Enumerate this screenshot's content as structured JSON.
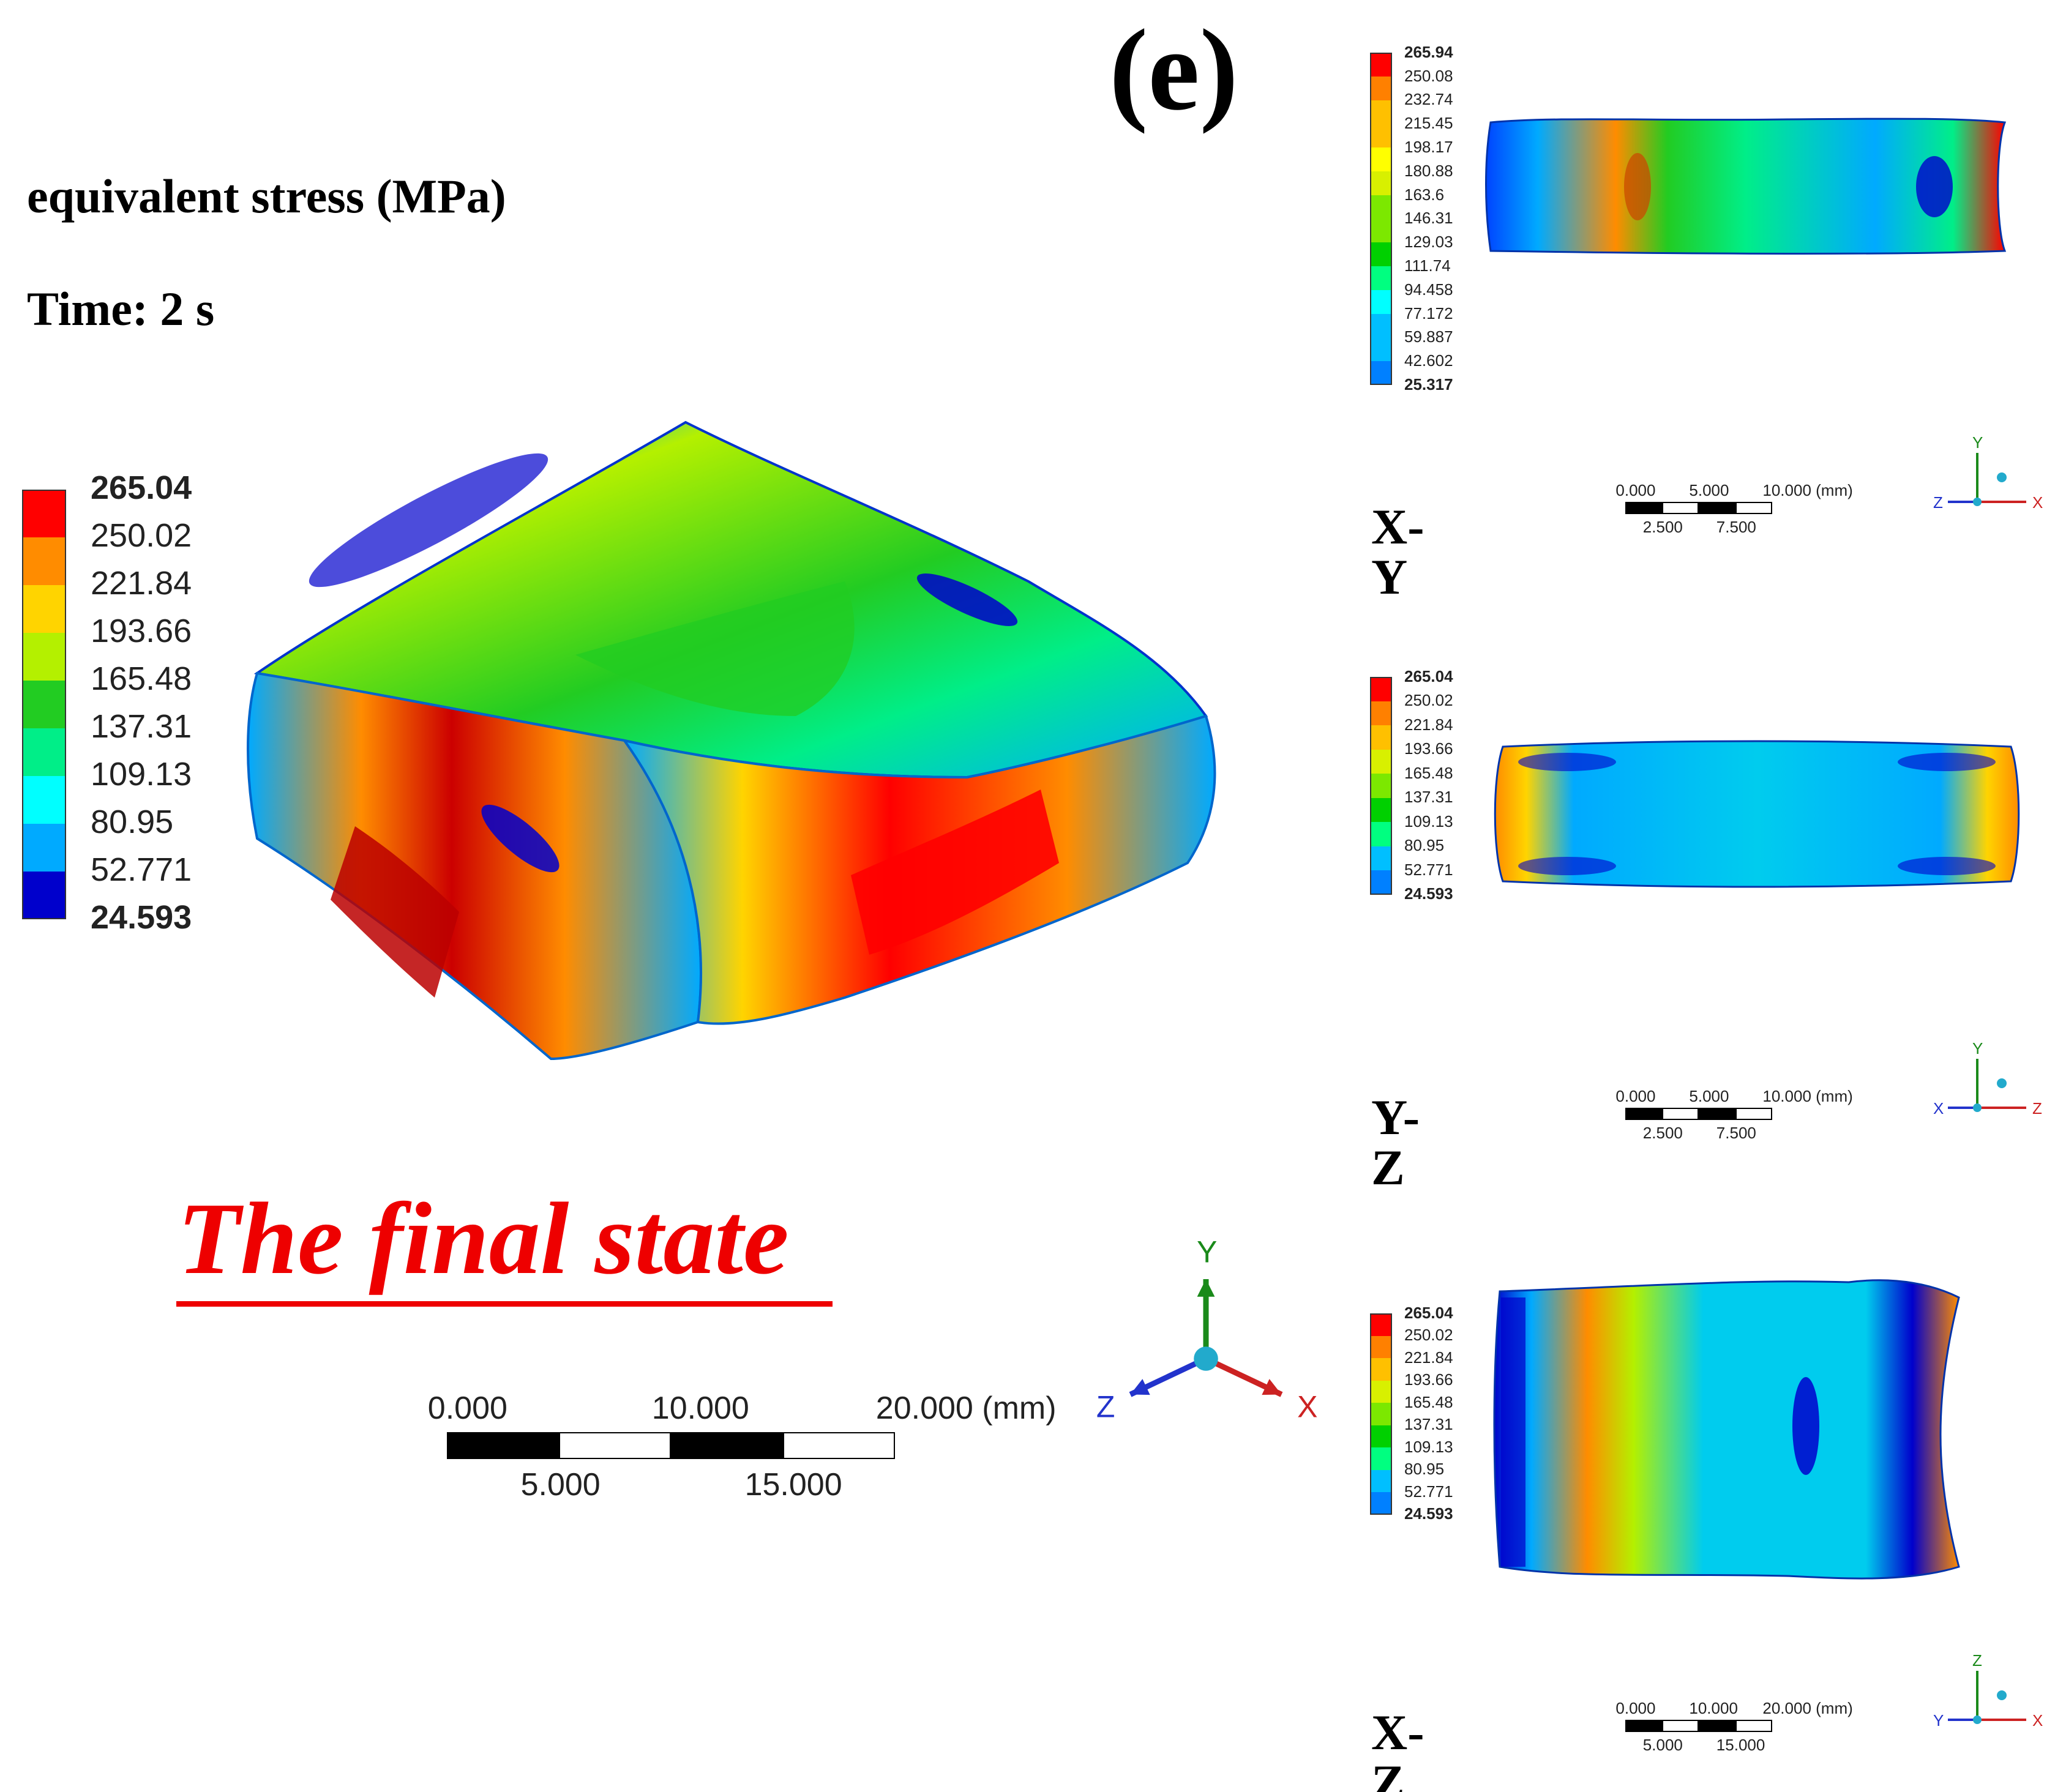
{
  "panel_label": "(e)",
  "quantity_label": "equivalent stress (MPa)",
  "time_label": "Time: 2 s",
  "caption": "The final state",
  "palette": [
    "#0000ff",
    "#0080ff",
    "#00bfff",
    "#00ffff",
    "#00ff80",
    "#00d000",
    "#7ce800",
    "#d8f000",
    "#ffff00",
    "#ffc000",
    "#ff8000",
    "#ff0000"
  ],
  "main_legend": {
    "values": [
      "265.04",
      "250.02",
      "221.84",
      "193.66",
      "165.48",
      "137.31",
      "109.13",
      "80.95",
      "52.771",
      "24.593"
    ],
    "colors": [
      "#ff0000",
      "#ff8c00",
      "#ffd400",
      "#b4f000",
      "#22cc22",
      "#00ee88",
      "#00ffff",
      "#00aaff",
      "#0044ff",
      "#0000cc"
    ]
  },
  "main_scale": {
    "top_labels": [
      "0.000",
      "10.000",
      "20.000 (mm)"
    ],
    "bottom_labels": [
      "5.000",
      "15.000"
    ]
  },
  "main_triad": {
    "x": "X",
    "y": "Y",
    "z": "Z"
  },
  "views": [
    {
      "name": "X-Y",
      "legend": [
        "265.94",
        "250.08",
        "232.74",
        "215.45",
        "198.17",
        "180.88",
        "163.6",
        "146.31",
        "129.03",
        "111.74",
        "94.458",
        "77.172",
        "59.887",
        "42.602",
        "25.317"
      ],
      "scale_top": [
        "0.000",
        "5.000",
        "10.000 (mm)"
      ],
      "scale_bottom": [
        "2.500",
        "7.500"
      ],
      "triad": {
        "a": "Y",
        "b": "X",
        "c": "Z"
      }
    },
    {
      "name": "Y-Z",
      "legend": [
        "265.04",
        "250.02",
        "221.84",
        "193.66",
        "165.48",
        "137.31",
        "109.13",
        "80.95",
        "52.771",
        "24.593"
      ],
      "scale_top": [
        "0.000",
        "5.000",
        "10.000 (mm)"
      ],
      "scale_bottom": [
        "2.500",
        "7.500"
      ],
      "triad": {
        "a": "Y",
        "b": "Z",
        "c": "X"
      }
    },
    {
      "name": "X-Z",
      "legend": [
        "265.04",
        "250.02",
        "221.84",
        "193.66",
        "165.48",
        "137.31",
        "109.13",
        "80.95",
        "52.771",
        "24.593"
      ],
      "scale_top": [
        "0.000",
        "10.000",
        "20.000 (mm)"
      ],
      "scale_bottom": [
        "5.000",
        "15.000"
      ],
      "triad": {
        "a": "Z",
        "b": "X",
        "c": "Y"
      }
    }
  ]
}
